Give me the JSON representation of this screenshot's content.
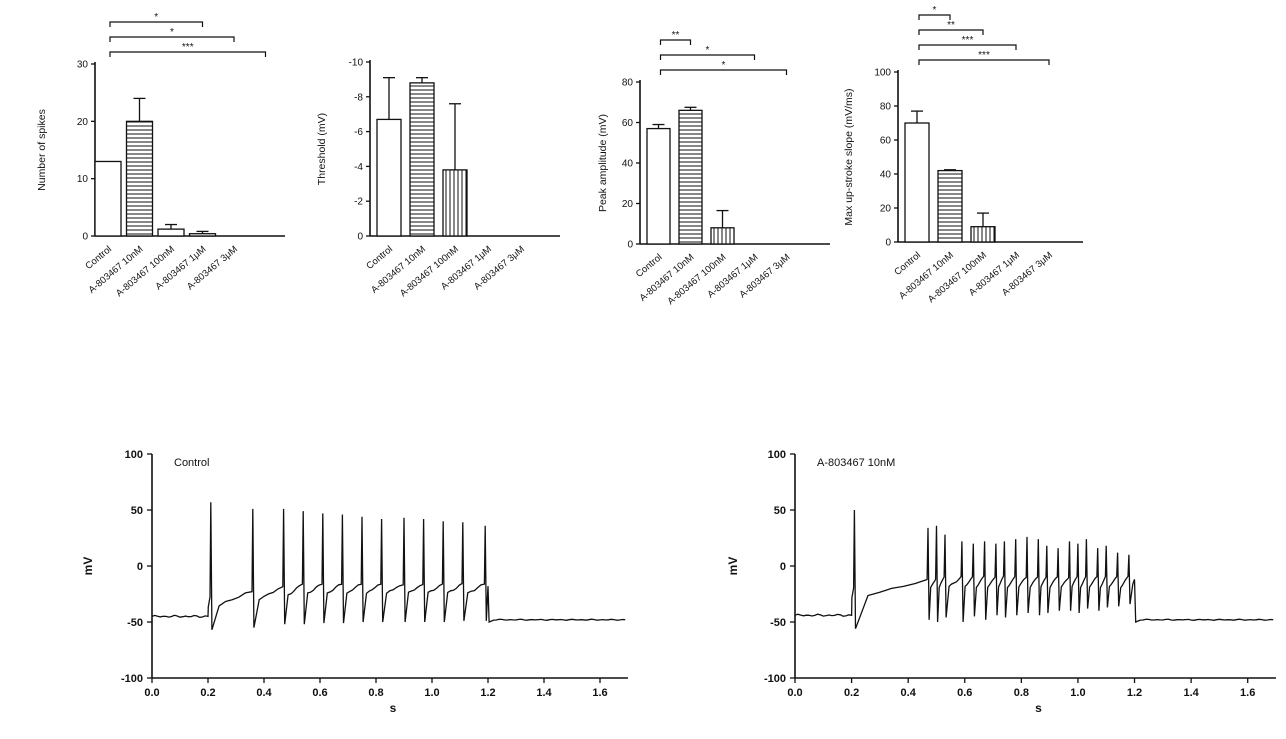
{
  "chart_data": [
    {
      "type": "bar",
      "ylabel": "Number of spikes",
      "ylim": [
        0,
        30
      ],
      "yticks": [
        0,
        10,
        20,
        30
      ],
      "categories": [
        "Control",
        "A-803467 10nM",
        "A-803467 100nM",
        "A-803467 1μM",
        "A-803467 3μM"
      ],
      "values": [
        13,
        20,
        1.2,
        0.4,
        0
      ],
      "errors": [
        0,
        4,
        0.8,
        0.4,
        0
      ],
      "patterns": [
        "none",
        "horizontal",
        "none",
        "none",
        "none"
      ],
      "significance": [
        {
          "from": 0,
          "to": 3,
          "label": "*"
        },
        {
          "from": 0,
          "to": 4,
          "label": "*"
        },
        {
          "from": 0,
          "to": 5,
          "label": "***"
        }
      ]
    },
    {
      "type": "bar",
      "ylabel": "Threshold (mV)",
      "ylim": [
        0,
        -10
      ],
      "yticks": [
        0,
        -2,
        -4,
        -6,
        -8,
        -10
      ],
      "categories": [
        "Control",
        "A-803467 10nM",
        "A-803467 100nM",
        "A-803467 1μM",
        "A-803467 3μM"
      ],
      "values": [
        -6.7,
        -8.8,
        -3.8,
        0,
        0
      ],
      "errors": [
        2.4,
        0.3,
        3.8,
        0,
        0
      ],
      "patterns": [
        "none",
        "horizontal",
        "vertical",
        "none",
        "none"
      ],
      "significance": []
    },
    {
      "type": "bar",
      "ylabel": "Peak amplitude (mV)",
      "ylim": [
        0,
        80
      ],
      "yticks": [
        0,
        20,
        40,
        60,
        80
      ],
      "categories": [
        "Control",
        "A-803467 10nM",
        "A-803467 100nM",
        "A-803467 1μM",
        "A-803467 3μM"
      ],
      "values": [
        57,
        66,
        8,
        0,
        0
      ],
      "errors": [
        2,
        1.5,
        8.5,
        0,
        0
      ],
      "patterns": [
        "none",
        "horizontal",
        "vertical",
        "none",
        "none"
      ],
      "significance": [
        {
          "from": 0,
          "to": 1,
          "label": "**"
        },
        {
          "from": 0,
          "to": 3,
          "label": "*"
        },
        {
          "from": 0,
          "to": 4,
          "label": "*"
        }
      ]
    },
    {
      "type": "bar",
      "ylabel": "Max up-stroke slope (mV/ms)",
      "ylim": [
        0,
        100
      ],
      "yticks": [
        0,
        20,
        40,
        60,
        80,
        100
      ],
      "categories": [
        "Control",
        "A-803467 10nM",
        "A-803467 100nM",
        "A-803467 1μM",
        "A-803467 3μM"
      ],
      "values": [
        70,
        42,
        9,
        0,
        0
      ],
      "errors": [
        7,
        0.5,
        8,
        0,
        0
      ],
      "patterns": [
        "none",
        "horizontal",
        "vertical",
        "none",
        "none"
      ],
      "significance": [
        {
          "from": 0,
          "to": 1,
          "label": "*"
        },
        {
          "from": 0,
          "to": 2,
          "label": "**"
        },
        {
          "from": 0,
          "to": 3,
          "label": "***"
        },
        {
          "from": 0,
          "to": 4,
          "label": "***"
        }
      ]
    },
    {
      "type": "line",
      "title": "Control",
      "xlabel": "s",
      "ylabel": "mV",
      "xlim": [
        0,
        1.7
      ],
      "ylim": [
        -100,
        100
      ],
      "xticks": [
        "0.0",
        "0.2",
        "0.4",
        "0.6",
        "0.8",
        "1.0",
        "1.2",
        "1.4",
        "1.6"
      ],
      "yticks": [
        "100",
        "50",
        "0",
        "-50",
        "-100"
      ],
      "rest_mV": -45,
      "after_mV": -48,
      "step_on_s": 0.2,
      "step_off_s": 1.2,
      "plateau_mV": [
        -30,
        -18
      ],
      "spike_times_s": [
        0.21,
        0.36,
        0.47,
        0.54,
        0.61,
        0.68,
        0.75,
        0.82,
        0.9,
        0.97,
        1.04,
        1.11,
        1.19
      ],
      "spike_peaks_mV": [
        57,
        51,
        51,
        49,
        47,
        46,
        44,
        42,
        43,
        42,
        40,
        39,
        36
      ],
      "spike_troughs_mV": [
        -57,
        -55,
        -52,
        -52,
        -51,
        -51,
        -50,
        -50,
        -50,
        -50,
        -50,
        -49,
        -49
      ]
    },
    {
      "type": "line",
      "title": "A-803467 10nM",
      "xlabel": "s",
      "ylabel": "mV",
      "xlim": [
        0,
        1.7
      ],
      "ylim": [
        -100,
        100
      ],
      "xticks": [
        "0.0",
        "0.2",
        "0.4",
        "0.6",
        "0.8",
        "1.0",
        "1.2",
        "1.4",
        "1.6"
      ],
      "yticks": [
        "100",
        "50",
        "0",
        "-50",
        "-100"
      ],
      "rest_mV": -44,
      "after_mV": -48,
      "step_on_s": 0.2,
      "step_off_s": 1.2,
      "plateau_mV": [
        -22,
        -12
      ],
      "spike_times_s": [
        0.21,
        0.47,
        0.5,
        0.53,
        0.59,
        0.63,
        0.67,
        0.71,
        0.74,
        0.78,
        0.82,
        0.86,
        0.89,
        0.93,
        0.97,
        1.0,
        1.03,
        1.07,
        1.1,
        1.14,
        1.18
      ],
      "spike_peaks_mV": [
        50,
        34,
        36,
        28,
        22,
        20,
        22,
        20,
        22,
        24,
        26,
        24,
        18,
        16,
        22,
        20,
        24,
        16,
        18,
        12,
        10
      ],
      "spike_troughs_mV": [
        -56,
        -48,
        -50,
        -46,
        -50,
        -45,
        -48,
        -44,
        -46,
        -44,
        -42,
        -44,
        -42,
        -40,
        -40,
        -42,
        -38,
        -40,
        -37,
        -36,
        -34
      ]
    }
  ]
}
